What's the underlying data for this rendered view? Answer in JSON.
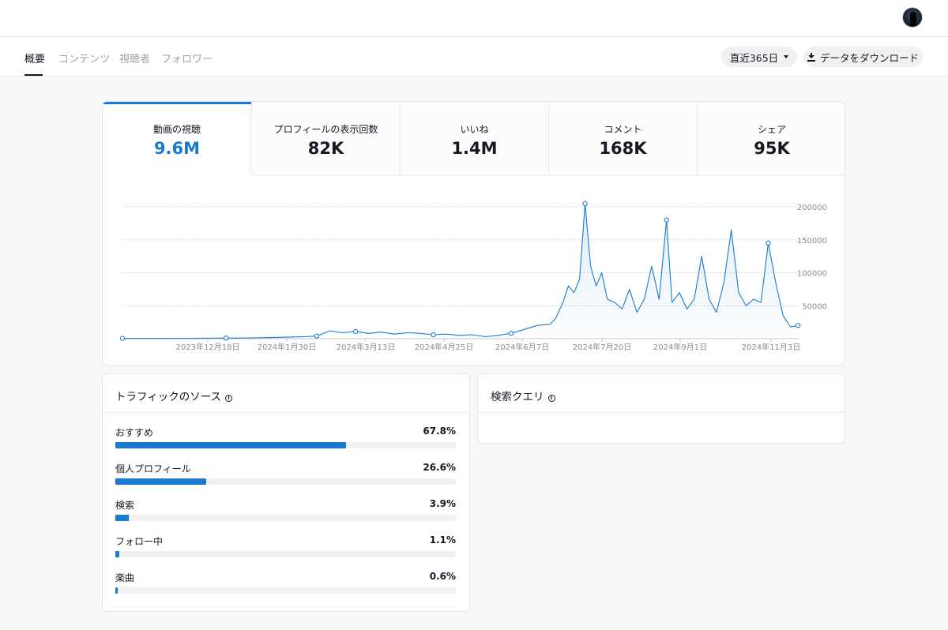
{
  "header": {
    "avatar_label": "user-avatar"
  },
  "tabs": [
    {
      "label": "概要",
      "active": true
    },
    {
      "label": "コンテンツ",
      "active": false
    },
    {
      "label": "視聴者",
      "active": false
    },
    {
      "label": "フォロワー",
      "active": false
    }
  ],
  "controls": {
    "range_label": "直近365日",
    "download_label": "データをダウンロード"
  },
  "metrics": [
    {
      "label": "動画の視聴",
      "value": "9.6M",
      "selected": true
    },
    {
      "label": "プロフィールの表示回数",
      "value": "82K"
    },
    {
      "label": "いいね",
      "value": "1.4M"
    },
    {
      "label": "コメント",
      "value": "168K"
    },
    {
      "label": "シェア",
      "value": "95K"
    }
  ],
  "colors": {
    "accent": "#1a7ad0",
    "text": "#161823",
    "muted": "#8a8b91"
  },
  "chart_data": {
    "type": "area",
    "series": [
      {
        "x": [
          "2023-11-12",
          "2023-11-19",
          "2023-11-26",
          "2023-12-03",
          "2023-12-10",
          "2023-12-17",
          "2023-12-24",
          "2023-12-31",
          "2024-01-07",
          "2024-01-14",
          "2024-01-21",
          "2024-01-28",
          "2024-02-04",
          "2024-02-11",
          "2024-02-18",
          "2024-02-25",
          "2024-03-03",
          "2024-03-10",
          "2024-03-17",
          "2024-03-24",
          "2024-03-31",
          "2024-04-07",
          "2024-04-14",
          "2024-04-21",
          "2024-04-28",
          "2024-05-05",
          "2024-05-12",
          "2024-05-19",
          "2024-05-26",
          "2024-06-02",
          "2024-06-09",
          "2024-06-16",
          "2024-06-23",
          "2024-06-30",
          "2024-07-03",
          "2024-07-07",
          "2024-07-10",
          "2024-07-13",
          "2024-07-16",
          "2024-07-19",
          "2024-07-22",
          "2024-07-25",
          "2024-07-28",
          "2024-07-31",
          "2024-08-04",
          "2024-08-08",
          "2024-08-12",
          "2024-08-16",
          "2024-08-20",
          "2024-08-24",
          "2024-08-28",
          "2024-09-01",
          "2024-09-04",
          "2024-09-08",
          "2024-09-12",
          "2024-09-16",
          "2024-09-20",
          "2024-09-24",
          "2024-09-28",
          "2024-10-02",
          "2024-10-06",
          "2024-10-10",
          "2024-10-14",
          "2024-10-18",
          "2024-10-22",
          "2024-10-26",
          "2024-10-30",
          "2024-11-03",
          "2024-11-07",
          "2024-11-11"
        ],
        "values": [
          500,
          500,
          500,
          500,
          600,
          600,
          700,
          800,
          900,
          1000,
          1200,
          1500,
          2000,
          2500,
          3000,
          4000,
          12000,
          9000,
          11000,
          8000,
          10000,
          7000,
          9000,
          8000,
          6000,
          7000,
          5000,
          6000,
          3000,
          5000,
          8000,
          14000,
          20000,
          22000,
          30000,
          55000,
          80000,
          70000,
          90000,
          205000,
          110000,
          80000,
          100000,
          60000,
          55000,
          45000,
          75000,
          40000,
          60000,
          110000,
          60000,
          180000,
          55000,
          70000,
          45000,
          60000,
          125000,
          60000,
          40000,
          85000,
          165000,
          70000,
          50000,
          60000,
          55000,
          145000,
          85000,
          35000,
          18000,
          20000
        ]
      }
    ],
    "x_tick_labels": [
      "2023年12月18日",
      "2024年1月30日",
      "2024年3月13日",
      "2024年4月25日",
      "2024年6月7日",
      "2024年7月20日",
      "2024年9月1日",
      "2024年11月3日"
    ],
    "y_tick_labels": [
      "200000",
      "150000",
      "100000",
      "50000"
    ],
    "ylim": [
      0,
      200000
    ],
    "grid": true,
    "markers_at": [
      "2023-11-12",
      "2024-01-07",
      "2024-02-25",
      "2024-03-17",
      "2024-04-28",
      "2024-06-09",
      "2024-07-19",
      "2024-09-01",
      "2024-10-26",
      "2024-11-11"
    ]
  },
  "traffic": {
    "title": "トラフィックのソース",
    "sources": [
      {
        "name": "おすすめ",
        "pct_label": "67.8%",
        "pct": 67.8
      },
      {
        "name": "個人プロフィール",
        "pct_label": "26.6%",
        "pct": 26.6
      },
      {
        "name": "検索",
        "pct_label": "3.9%",
        "pct": 3.9
      },
      {
        "name": "フォロー中",
        "pct_label": "1.1%",
        "pct": 1.1
      },
      {
        "name": "楽曲",
        "pct_label": "0.6%",
        "pct": 0.6
      }
    ]
  },
  "search": {
    "title": "検索クエリ"
  }
}
